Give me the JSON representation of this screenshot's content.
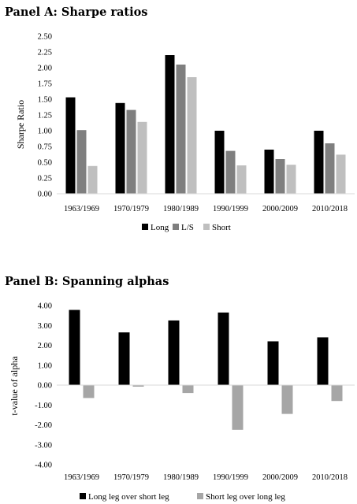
{
  "chart_data": [
    {
      "type": "bar",
      "title": "Panel A: Sharpe ratios",
      "ylabel": "Sharpe Ratio",
      "xlabel": "",
      "categories": [
        "1963/1969",
        "1970/1979",
        "1980/1989",
        "1990/1999",
        "2000/2009",
        "2010/2018"
      ],
      "series": [
        {
          "name": "Long",
          "color": "#000000",
          "values": [
            1.53,
            1.44,
            2.2,
            1.0,
            0.7,
            1.0
          ]
        },
        {
          "name": "L/S",
          "color": "#7f7f7f",
          "values": [
            1.01,
            1.33,
            2.05,
            0.68,
            0.55,
            0.8
          ]
        },
        {
          "name": "Short",
          "color": "#bfbfbf",
          "values": [
            0.44,
            1.14,
            1.85,
            0.45,
            0.46,
            0.62
          ]
        }
      ],
      "ylim": [
        0,
        2.5
      ],
      "yticks": [
        "0.00",
        "0.25",
        "0.50",
        "0.75",
        "1.00",
        "1.25",
        "1.50",
        "1.75",
        "2.00",
        "2.25",
        "2.50"
      ],
      "grid": false,
      "legend": "bottom"
    },
    {
      "type": "bar",
      "title": "Panel B: Spanning alphas",
      "ylabel": "t-value of alpha",
      "xlabel": "",
      "categories": [
        "1963/1969",
        "1970/1979",
        "1980/1989",
        "1990/1999",
        "2000/2009",
        "2010/2018"
      ],
      "series": [
        {
          "name": "Long leg over short leg",
          "color": "#000000",
          "values": [
            3.78,
            2.65,
            3.25,
            3.65,
            2.2,
            2.4
          ]
        },
        {
          "name": "Short leg over long leg",
          "color": "#a6a6a6",
          "values": [
            -0.65,
            -0.08,
            -0.4,
            -2.25,
            -1.45,
            -0.8
          ]
        }
      ],
      "ylim": [
        -4,
        4
      ],
      "yticks": [
        "4.00",
        "3.00",
        "2.00",
        "1.00",
        "0.00",
        "-1.00",
        "-2.00",
        "-3.00",
        "-4.00"
      ],
      "grid": false,
      "legend": "bottom"
    }
  ]
}
